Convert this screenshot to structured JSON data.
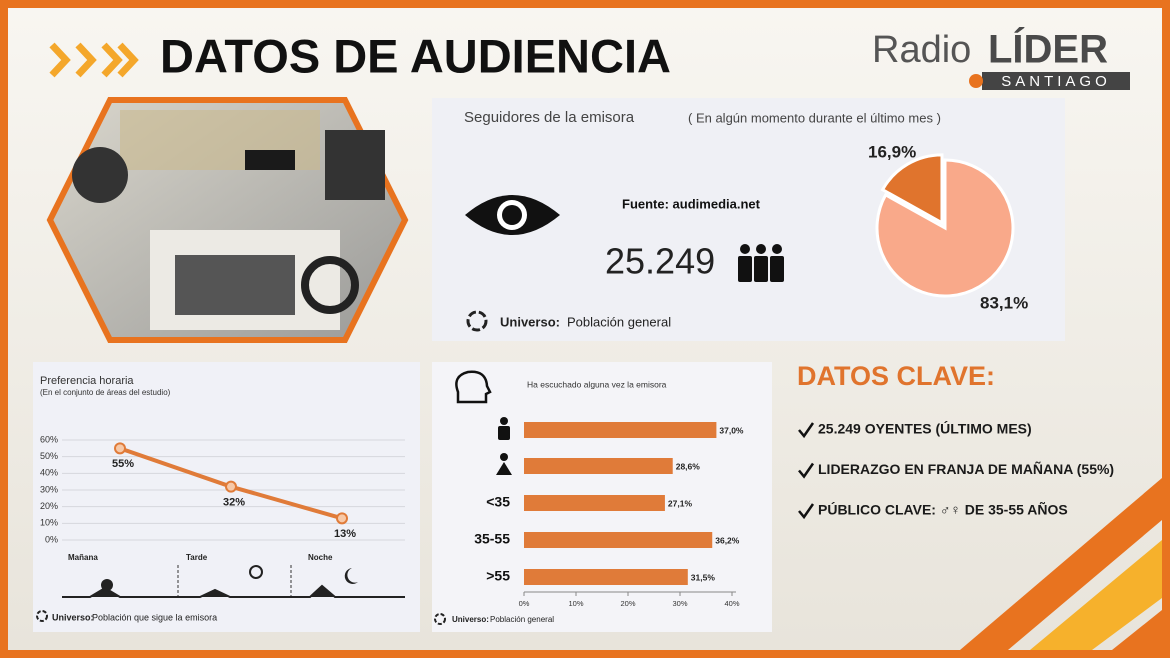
{
  "header": {
    "title": "DATOS DE AUDIENCIA",
    "logo_word": "Radio",
    "logo_name": "LÍDER",
    "logo_sub": "SANTIAGO"
  },
  "followers": {
    "title": "Seguidores de la emisora",
    "title_note": "( En algún momento durante el último mes )",
    "source": "Fuente: audimedia.net",
    "count": "25.249",
    "universe_label": "Universo:",
    "universe_value": "Población general"
  },
  "key_data": {
    "title": "DATOS CLAVE:",
    "items": [
      "25.249 OYENTES (ÚLTIMO MES)",
      "LIDERAZGO EN FRANJA DE MAÑANA (55%)",
      "PÚBLICO CLAVE: ♂♀ DE 35-55 AÑOS"
    ]
  },
  "chart_data": [
    {
      "type": "pie",
      "values": [
        16.9,
        83.1
      ],
      "value_labels": [
        "16,9%",
        "83,1%"
      ],
      "colors": [
        "#e0742d",
        "#f9a98a"
      ]
    },
    {
      "type": "line",
      "title": "Preferencia horaria",
      "subtitle": "(En el conjunto de áreas del estudio)",
      "categories": [
        "Mañana",
        "Tarde",
        "Noche"
      ],
      "values": [
        55,
        32,
        13
      ],
      "value_labels": [
        "55%",
        "32%",
        "13%"
      ],
      "color": "#e07b39",
      "ylim": [
        0,
        60
      ],
      "yticks": [
        {
          "value": 0,
          "label": "0%"
        },
        {
          "value": 10,
          "label": "10%"
        },
        {
          "value": 20,
          "label": "20%"
        },
        {
          "value": 30,
          "label": "30%"
        },
        {
          "value": 40,
          "label": "40%"
        },
        {
          "value": 50,
          "label": "50%"
        },
        {
          "value": 60,
          "label": "60%"
        }
      ],
      "grid": true,
      "universe_label": "Universo:",
      "universe_value": "Población que sigue la emisora"
    },
    {
      "type": "hbar",
      "title": "Ha escuchado alguna vez la emisora",
      "categories": [
        null,
        null,
        "<35",
        "35-55",
        ">55"
      ],
      "values": [
        37.0,
        28.6,
        27.1,
        36.2,
        31.5
      ],
      "value_labels": [
        "37,0%",
        "28,6%",
        "27,1%",
        "36,2%",
        "31,5%"
      ],
      "color": "#e07b39",
      "xlim": [
        0,
        40
      ],
      "xticks": [
        {
          "value": 0,
          "label": "0%"
        },
        {
          "value": 10,
          "label": "10%"
        },
        {
          "value": 20,
          "label": "20%"
        },
        {
          "value": 30,
          "label": "30%"
        },
        {
          "value": 40,
          "label": "40%"
        }
      ],
      "universe_label": "Universo:",
      "universe_value": "Población general"
    }
  ]
}
